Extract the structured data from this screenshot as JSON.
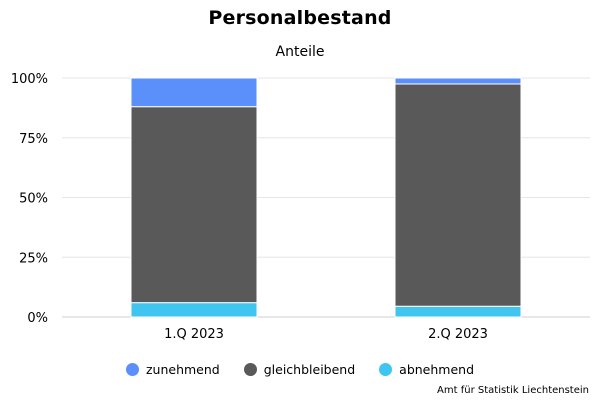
{
  "chart_data": {
    "type": "bar",
    "stacked": true,
    "title": "Personalbestand",
    "subtitle": "Anteile",
    "xlabel": "",
    "ylabel": "",
    "categories": [
      "1.Q 2023",
      "2.Q 2023"
    ],
    "series": [
      {
        "name": "zunehmend",
        "color": "#5b8ff9",
        "values": [
          12.0,
          2.5
        ]
      },
      {
        "name": "gleichbleibend",
        "color": "#595959",
        "values": [
          82.0,
          93.0
        ]
      },
      {
        "name": "abnehmend",
        "color": "#40c4f0",
        "values": [
          6.0,
          4.5
        ]
      }
    ],
    "stack_order_bottom_to_top": [
      "abnehmend",
      "gleichbleibend",
      "zunehmend"
    ],
    "ylim": [
      0,
      100
    ],
    "y_ticks": [
      0,
      25,
      50,
      75,
      100
    ],
    "y_tick_labels": [
      "0%",
      "25%",
      "50%",
      "75%",
      "100%"
    ],
    "grid": true,
    "legend_position": "bottom"
  },
  "credit": "Amt für Statistik Liechtenstein"
}
